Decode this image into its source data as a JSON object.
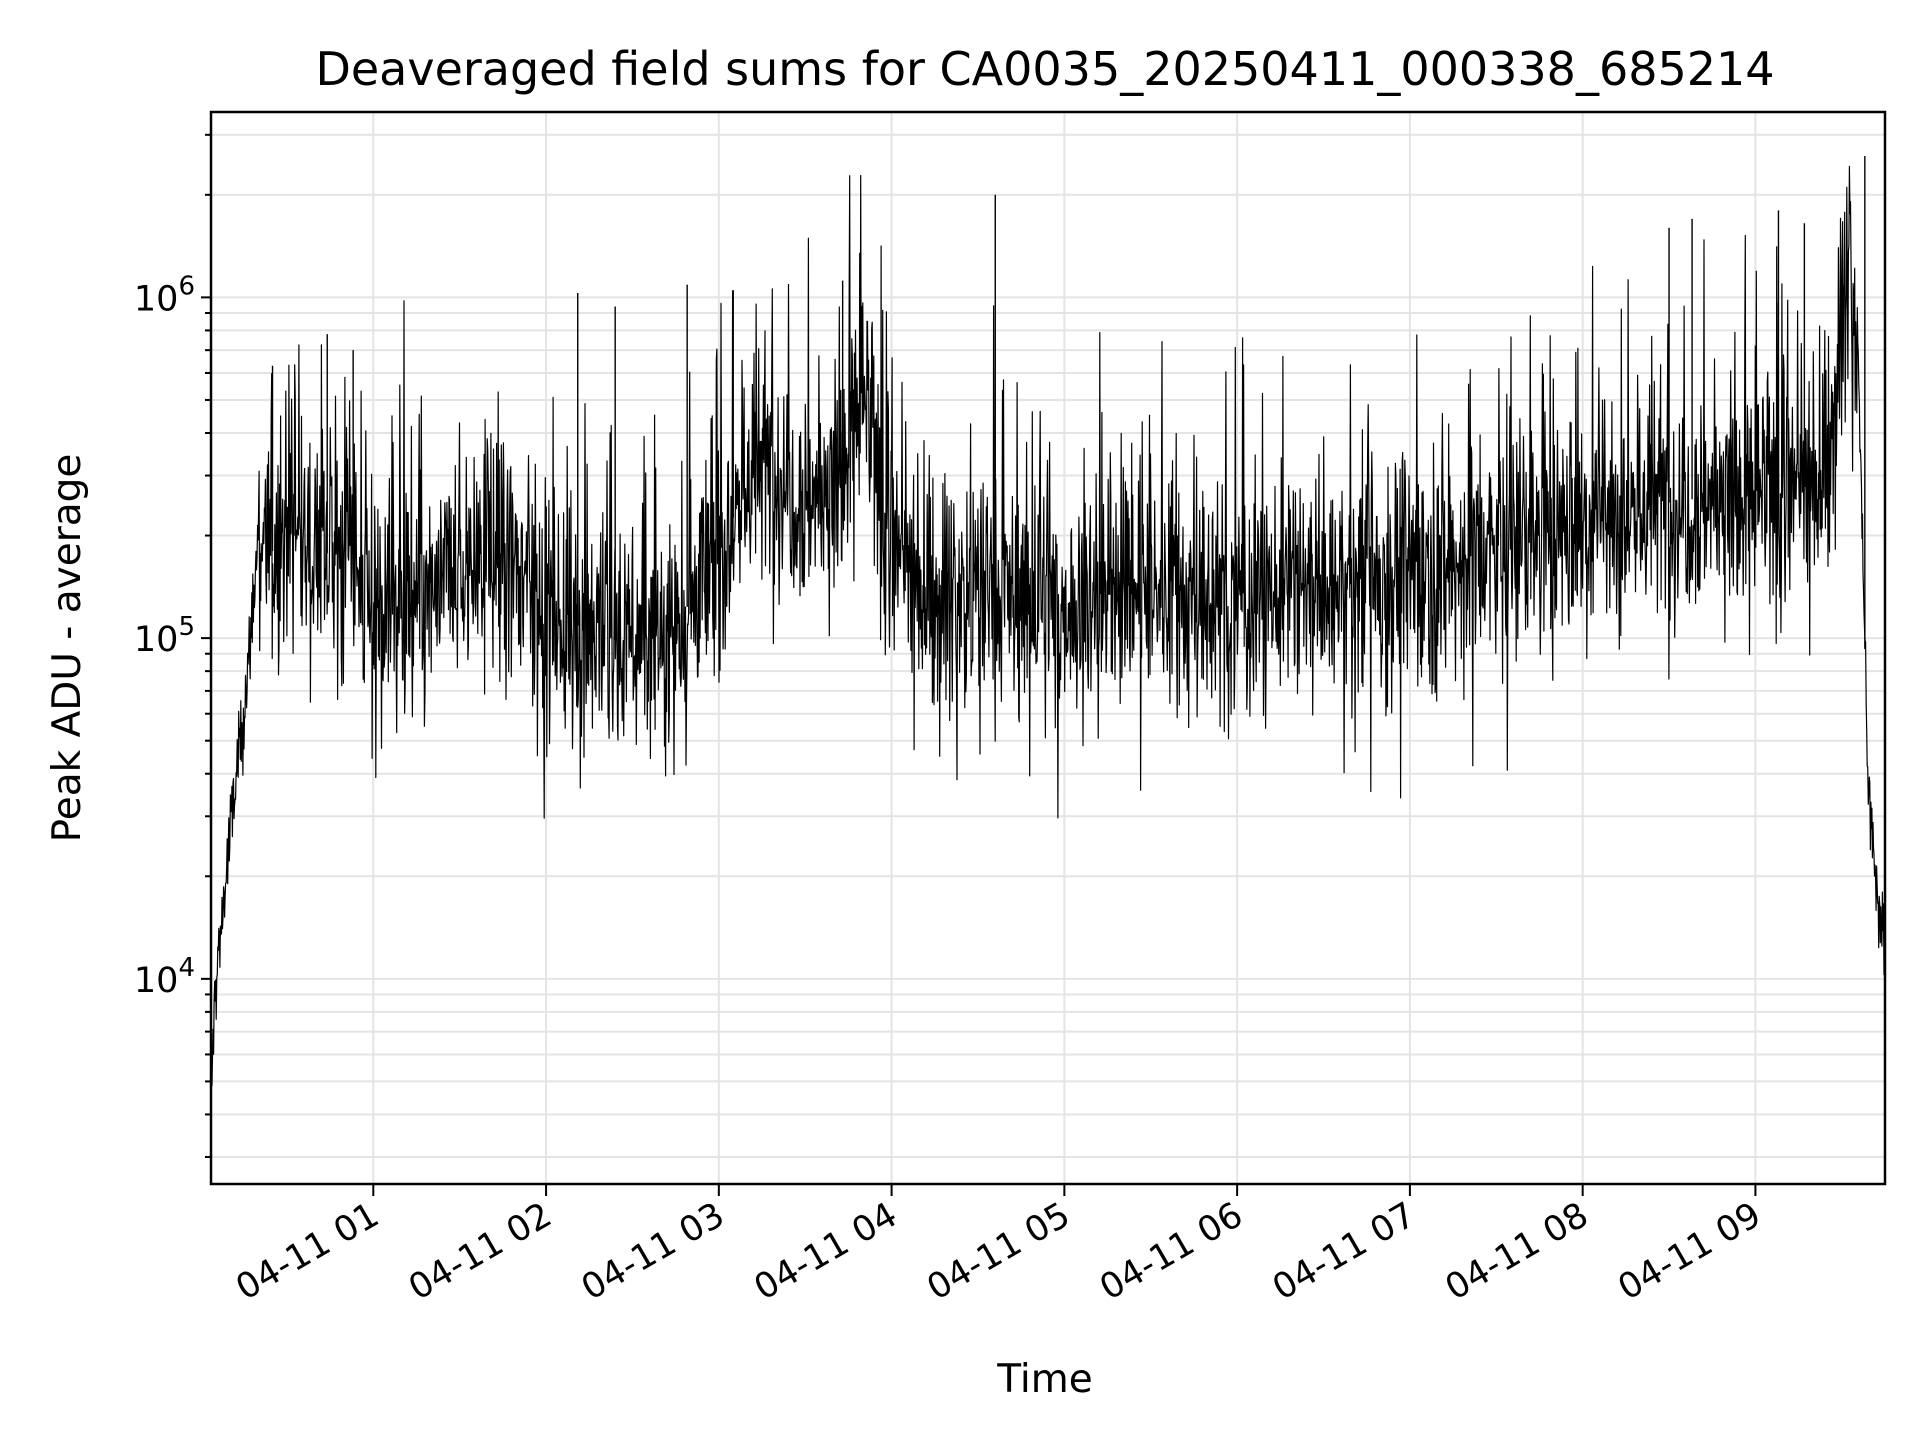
{
  "chart_data": {
    "type": "line",
    "title": "Deaveraged field sums for CA0035_20250411_000338_685214",
    "xlabel": "Time",
    "ylabel": "Peak ADU - average",
    "xlim": [
      "2025-04-11 00:03:38",
      "2025-04-11 09:45:00"
    ],
    "ylim": [
      2500,
      3500000
    ],
    "yscale": "log",
    "grid": true,
    "line_color": "#000000",
    "x_tick_labels": [
      "04-11 01",
      "04-11 02",
      "04-11 03",
      "04-11 04",
      "04-11 05",
      "04-11 06",
      "04-11 07",
      "04-11 08",
      "04-11 09"
    ],
    "x_ticks": [
      "2025-04-11 01:00",
      "2025-04-11 02:00",
      "2025-04-11 03:00",
      "2025-04-11 04:00",
      "2025-04-11 05:00",
      "2025-04-11 06:00",
      "2025-04-11 07:00",
      "2025-04-11 08:00",
      "2025-04-11 09:00"
    ],
    "y_ticks": [
      10000,
      100000,
      1000000
    ],
    "y_tick_labels": [
      {
        "base": "10",
        "exp": "4"
      },
      {
        "base": "10",
        "exp": "5"
      },
      {
        "base": "10",
        "exp": "6"
      }
    ],
    "series": [
      {
        "x": [
          "2025-04-11 00:03:38",
          "2025-04-11 00:05",
          "2025-04-11 00:08",
          "2025-04-11 00:11",
          "2025-04-11 00:14",
          "2025-04-11 00:17",
          "2025-04-11 00:20",
          "2025-04-11 00:25",
          "2025-04-11 00:30",
          "2025-04-11 00:35",
          "2025-04-11 00:40",
          "2025-04-11 00:45",
          "2025-04-11 00:50",
          "2025-04-11 00:55",
          "2025-04-11 01:00",
          "2025-04-11 01:15",
          "2025-04-11 01:30",
          "2025-04-11 01:45",
          "2025-04-11 02:00",
          "2025-04-11 02:15",
          "2025-04-11 02:30",
          "2025-04-11 02:45",
          "2025-04-11 03:00",
          "2025-04-11 03:10",
          "2025-04-11 03:20",
          "2025-04-11 03:30",
          "2025-04-11 03:40",
          "2025-04-11 03:50",
          "2025-04-11 04:00",
          "2025-04-11 04:15",
          "2025-04-11 04:30",
          "2025-04-11 04:45",
          "2025-04-11 05:00",
          "2025-04-11 05:15",
          "2025-04-11 05:30",
          "2025-04-11 05:45",
          "2025-04-11 06:00",
          "2025-04-11 06:15",
          "2025-04-11 06:30",
          "2025-04-11 06:45",
          "2025-04-11 07:00",
          "2025-04-11 07:15",
          "2025-04-11 07:30",
          "2025-04-11 07:45",
          "2025-04-11 08:00",
          "2025-04-11 08:15",
          "2025-04-11 08:30",
          "2025-04-11 08:45",
          "2025-04-11 09:00",
          "2025-04-11 09:15",
          "2025-04-11 09:25",
          "2025-04-11 09:33",
          "2025-04-11 09:36",
          "2025-04-11 09:39",
          "2025-04-11 09:42",
          "2025-04-11 09:45"
        ],
        "y": [
          4200,
          9000,
          17000,
          30000,
          50000,
          90000,
          200000,
          180000,
          200000,
          190000,
          210000,
          170000,
          200000,
          150000,
          120000,
          115000,
          160000,
          170000,
          120000,
          105000,
          95000,
          110000,
          170000,
          300000,
          320000,
          260000,
          270000,
          500000,
          180000,
          130000,
          140000,
          130000,
          120000,
          130000,
          140000,
          125000,
          130000,
          140000,
          135000,
          145000,
          160000,
          160000,
          180000,
          200000,
          220000,
          240000,
          250000,
          260000,
          250000,
          270000,
          320000,
          1400000,
          500000,
          40000,
          18000,
          12000
        ]
      }
    ],
    "spikes": [
      {
        "x": "2025-04-11 00:25",
        "y": 630000
      },
      {
        "x": "2025-04-11 00:44",
        "y": 780000
      },
      {
        "x": "2025-04-11 00:53",
        "y": 700000
      },
      {
        "x": "2025-04-11 02:11",
        "y": 1030000
      },
      {
        "x": "2025-04-11 02:24",
        "y": 940000
      },
      {
        "x": "2025-04-11 02:49",
        "y": 1090000
      },
      {
        "x": "2025-04-11 03:05",
        "y": 1050000
      },
      {
        "x": "2025-04-11 03:43",
        "y": 1120000
      },
      {
        "x": "2025-04-11 04:36",
        "y": 2000000
      },
      {
        "x": "2025-04-11 08:30",
        "y": 1600000
      },
      {
        "x": "2025-04-11 08:38",
        "y": 1700000
      },
      {
        "x": "2025-04-11 09:08",
        "y": 1800000
      },
      {
        "x": "2025-04-11 09:17",
        "y": 1650000
      },
      {
        "x": "2025-04-11 09:38",
        "y": 2600000
      }
    ]
  }
}
